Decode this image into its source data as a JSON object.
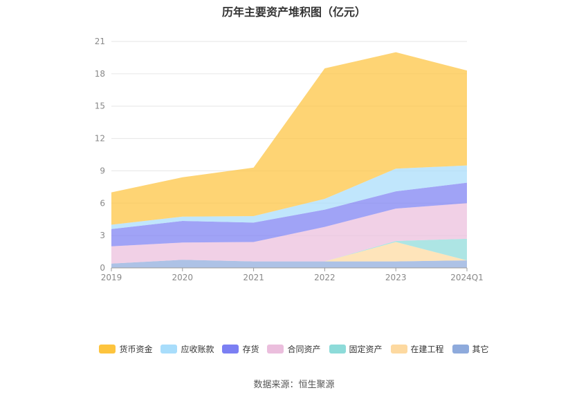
{
  "title": "历年主要资产堆积图（亿元）",
  "source": "数据来源：恒生聚源",
  "chart_data": {
    "type": "area",
    "stacked": true,
    "categories": [
      "2019",
      "2020",
      "2021",
      "2022",
      "2023",
      "2024Q1"
    ],
    "ylim": [
      0,
      21
    ],
    "yticks": [
      "0",
      "3",
      "6",
      "9",
      "12",
      "15",
      "18",
      "21"
    ],
    "grid": true,
    "legend_position": "bottom",
    "series": [
      {
        "name": "其它",
        "color": "#8eaadc",
        "values": [
          0.4,
          0.75,
          0.6,
          0.6,
          0.6,
          0.7
        ]
      },
      {
        "name": "在建工程",
        "color": "#fdd9a0",
        "values": [
          0.0,
          0.0,
          0.0,
          0.0,
          1.8,
          0.0
        ]
      },
      {
        "name": "固定资产",
        "color": "#8ddbd9",
        "values": [
          0.0,
          0.0,
          0.0,
          0.0,
          0.1,
          2.0
        ]
      },
      {
        "name": "合同资产",
        "color": "#ebbedd",
        "values": [
          1.6,
          1.6,
          1.8,
          3.2,
          3.0,
          3.3
        ]
      },
      {
        "name": "存货",
        "color": "#7b7ff3",
        "values": [
          1.6,
          2.0,
          1.8,
          1.6,
          1.6,
          1.9
        ]
      },
      {
        "name": "应收账款",
        "color": "#a8ddfb",
        "values": [
          0.4,
          0.4,
          0.6,
          1.0,
          2.1,
          1.6
        ]
      },
      {
        "name": "货币资金",
        "color": "#fdc43e",
        "values": [
          3.0,
          3.65,
          4.5,
          12.1,
          10.8,
          8.8
        ]
      }
    ]
  }
}
